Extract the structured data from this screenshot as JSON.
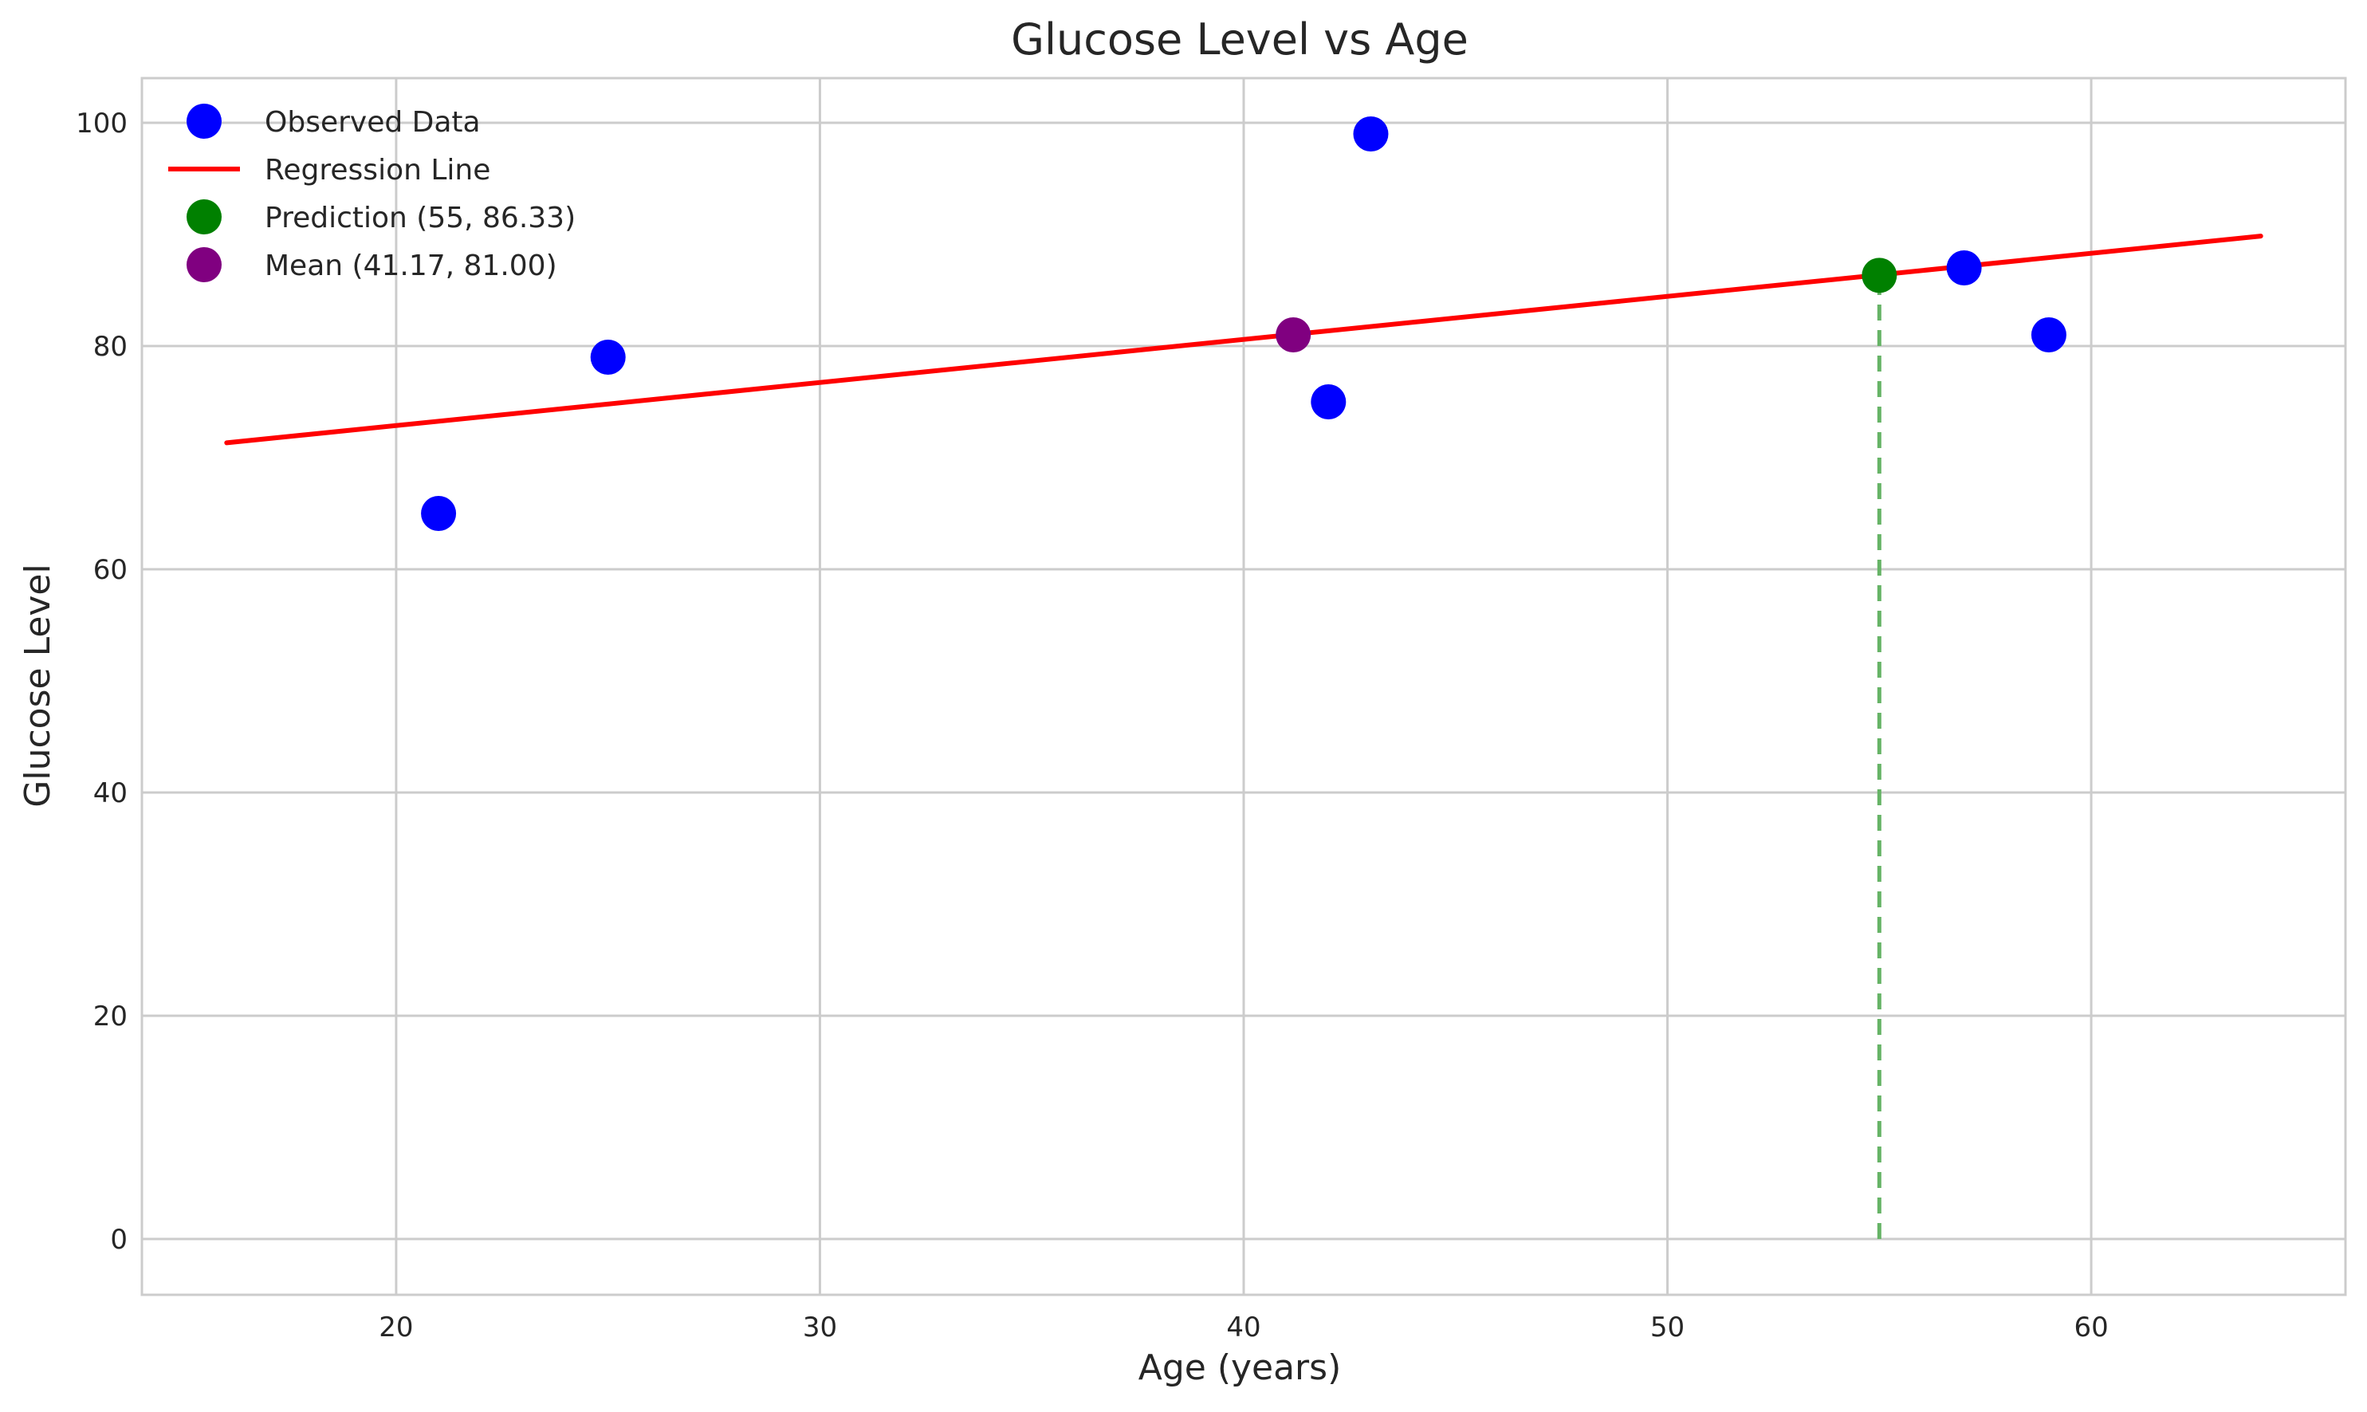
{
  "chart_data": {
    "type": "scatter",
    "title": "Glucose Level vs Age",
    "xlabel": "Age (years)",
    "ylabel": "Glucose Level",
    "xlim": [
      14,
      66
    ],
    "ylim": [
      -5,
      104
    ],
    "x_ticks": [
      20,
      30,
      40,
      50,
      60
    ],
    "y_ticks": [
      0,
      20,
      40,
      60,
      80,
      100
    ],
    "grid": true,
    "legend_position": "top-left",
    "series": [
      {
        "name": "Observed Data",
        "kind": "scatter",
        "color": "#0000ff",
        "points": [
          {
            "x": 21,
            "y": 65
          },
          {
            "x": 25,
            "y": 79
          },
          {
            "x": 42,
            "y": 75
          },
          {
            "x": 43,
            "y": 99
          },
          {
            "x": 57,
            "y": 87
          },
          {
            "x": 59,
            "y": 81
          }
        ]
      },
      {
        "name": "Regression Line",
        "kind": "line",
        "color": "#ff0000",
        "points": [
          {
            "x": 16,
            "y": 71.33
          },
          {
            "x": 64,
            "y": 89.85
          }
        ]
      },
      {
        "name": "Prediction (55, 86.33)",
        "kind": "point",
        "color": "#008000",
        "points": [
          {
            "x": 55,
            "y": 86.33
          }
        ]
      },
      {
        "name": "Mean (41.17, 81.00)",
        "kind": "point",
        "color": "#800080",
        "points": [
          {
            "x": 41.17,
            "y": 81.0
          }
        ]
      }
    ],
    "annotations": [
      {
        "kind": "vertical-dashed-line",
        "color": "#66b366",
        "x": 55,
        "y_from": 0,
        "y_to": 86.33
      }
    ],
    "colors": {
      "grid": "#cccccc",
      "frame": "#cccccc",
      "text": "#262626"
    }
  }
}
